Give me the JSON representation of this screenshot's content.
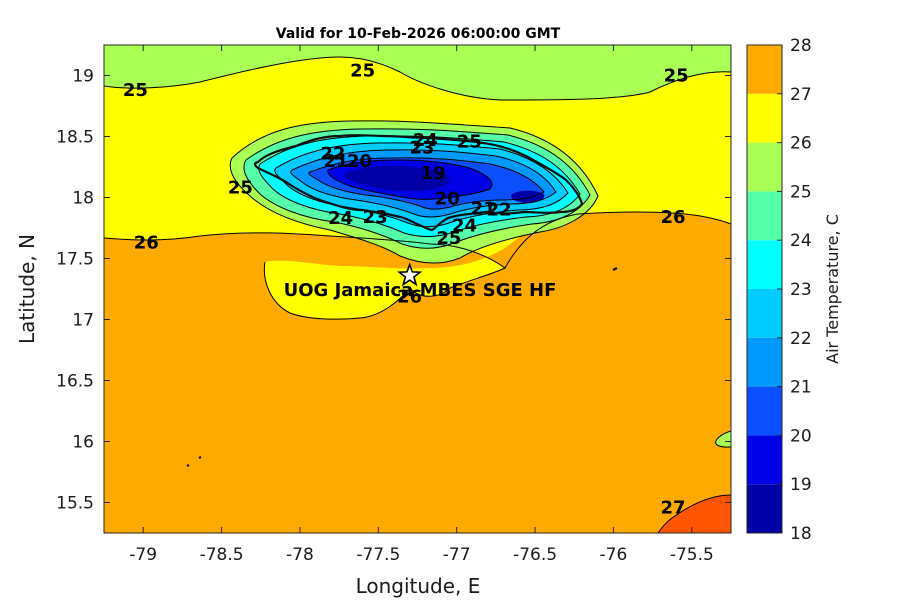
{
  "chart_data": {
    "type": "contourf",
    "title": "Valid for 10-Feb-2026 06:00:00 GMT",
    "xlabel": "Longitude, E",
    "ylabel": "Latitude, N",
    "xlim": [
      -79.25,
      -75.25
    ],
    "ylim": [
      15.25,
      19.25
    ],
    "xticks": [
      -79,
      -78.5,
      -78,
      -77.5,
      -77,
      -76.5,
      -76,
      -75.5
    ],
    "xtick_labels": [
      "-79",
      "-78.5",
      "-78",
      "-77.5",
      "-77",
      "-76.5",
      "-76",
      "-75.5"
    ],
    "yticks": [
      15.5,
      16,
      16.5,
      17,
      17.5,
      18,
      18.5,
      19
    ],
    "ytick_labels": [
      "15.5",
      "16",
      "16.5",
      "17",
      "17.5",
      "18",
      "18.5",
      "19"
    ],
    "colorbar": {
      "label": "Air Temperature, C",
      "levels": [
        18,
        19,
        20,
        21,
        22,
        23,
        24,
        25,
        26,
        27,
        28
      ],
      "tick_labels": [
        "18",
        "19",
        "20",
        "21",
        "22",
        "23",
        "24",
        "25",
        "26",
        "27",
        "28"
      ],
      "colors": [
        "#0000a6",
        "#0000e6",
        "#0b4fff",
        "#0099ff",
        "#00ccff",
        "#00ffff",
        "#55ffaa",
        "#aaff55",
        "#ffff00",
        "#ffaa00",
        "#ff5500",
        "#ff0000"
      ]
    },
    "contour_labels": [
      {
        "text": "25",
        "lon": -77.6,
        "lat": 19.04
      },
      {
        "text": "25",
        "lon": -79.05,
        "lat": 18.88
      },
      {
        "text": "25",
        "lon": -75.6,
        "lat": 19.0
      },
      {
        "text": "24",
        "lon": -77.2,
        "lat": 18.47
      },
      {
        "text": "25",
        "lon": -76.92,
        "lat": 18.46
      },
      {
        "text": "23",
        "lon": -77.22,
        "lat": 18.41
      },
      {
        "text": "22",
        "lon": -77.79,
        "lat": 18.36
      },
      {
        "text": "21",
        "lon": -77.77,
        "lat": 18.3
      },
      {
        "text": "20",
        "lon": -77.62,
        "lat": 18.3
      },
      {
        "text": "19",
        "lon": -77.15,
        "lat": 18.2
      },
      {
        "text": "25",
        "lon": -78.38,
        "lat": 18.08
      },
      {
        "text": "20",
        "lon": -77.06,
        "lat": 17.99
      },
      {
        "text": "21",
        "lon": -76.83,
        "lat": 17.91
      },
      {
        "text": "22",
        "lon": -76.73,
        "lat": 17.9
      },
      {
        "text": "24",
        "lon": -77.74,
        "lat": 17.83
      },
      {
        "text": "23",
        "lon": -77.52,
        "lat": 17.84
      },
      {
        "text": "24",
        "lon": -76.95,
        "lat": 17.77
      },
      {
        "text": "25",
        "lon": -77.05,
        "lat": 17.67
      },
      {
        "text": "26",
        "lon": -78.98,
        "lat": 17.63
      },
      {
        "text": "26",
        "lon": -75.62,
        "lat": 17.84
      },
      {
        "text": "26",
        "lon": -77.3,
        "lat": 17.19
      },
      {
        "text": "27",
        "lon": -75.62,
        "lat": 15.46
      }
    ],
    "station": {
      "name": "UOG Jamaica MBES SGE HF",
      "lon": -77.3,
      "lat": 17.36,
      "marker": "star"
    }
  }
}
